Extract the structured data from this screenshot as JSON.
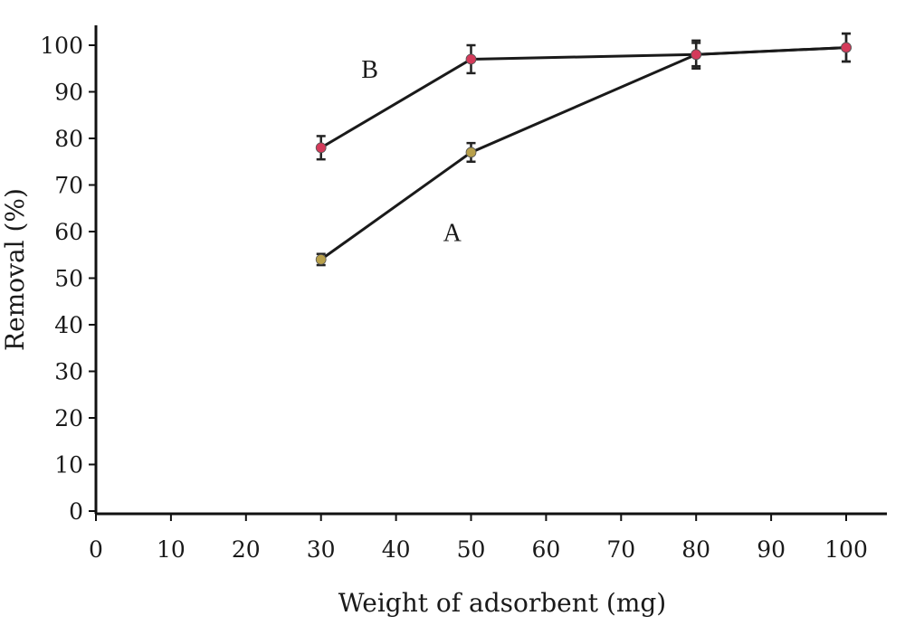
{
  "chart_data": {
    "type": "line",
    "title": "",
    "xlabel": "Weight of adsorbent (mg)",
    "ylabel": "Removal (%)",
    "xlim": [
      0,
      100
    ],
    "ylim": [
      0,
      100
    ],
    "x_ticks": [
      "0",
      "10",
      "20",
      "30",
      "40",
      "50",
      "60",
      "70",
      "80",
      "90",
      "100"
    ],
    "y_ticks": [
      "0",
      "10",
      "20",
      "30",
      "40",
      "50",
      "60",
      "70",
      "80",
      "90",
      "100"
    ],
    "grid": false,
    "series": [
      {
        "name": "A",
        "color": "#b8a04a",
        "points": [
          {
            "x": 30,
            "y": 54,
            "err": 1.2
          },
          {
            "x": 50,
            "y": 77,
            "err": 2.0
          },
          {
            "x": 80,
            "y": 98,
            "err": 2.5
          },
          {
            "x": 100,
            "y": 99.5,
            "err": 3.0
          }
        ]
      },
      {
        "name": "B",
        "color": "#d43a5a",
        "points": [
          {
            "x": 30,
            "y": 78,
            "err": 2.5
          },
          {
            "x": 50,
            "y": 97,
            "err": 3.0
          },
          {
            "x": 80,
            "y": 98,
            "err": 3.0
          },
          {
            "x": 100,
            "y": 99.5,
            "err": 3.0
          }
        ]
      }
    ]
  }
}
